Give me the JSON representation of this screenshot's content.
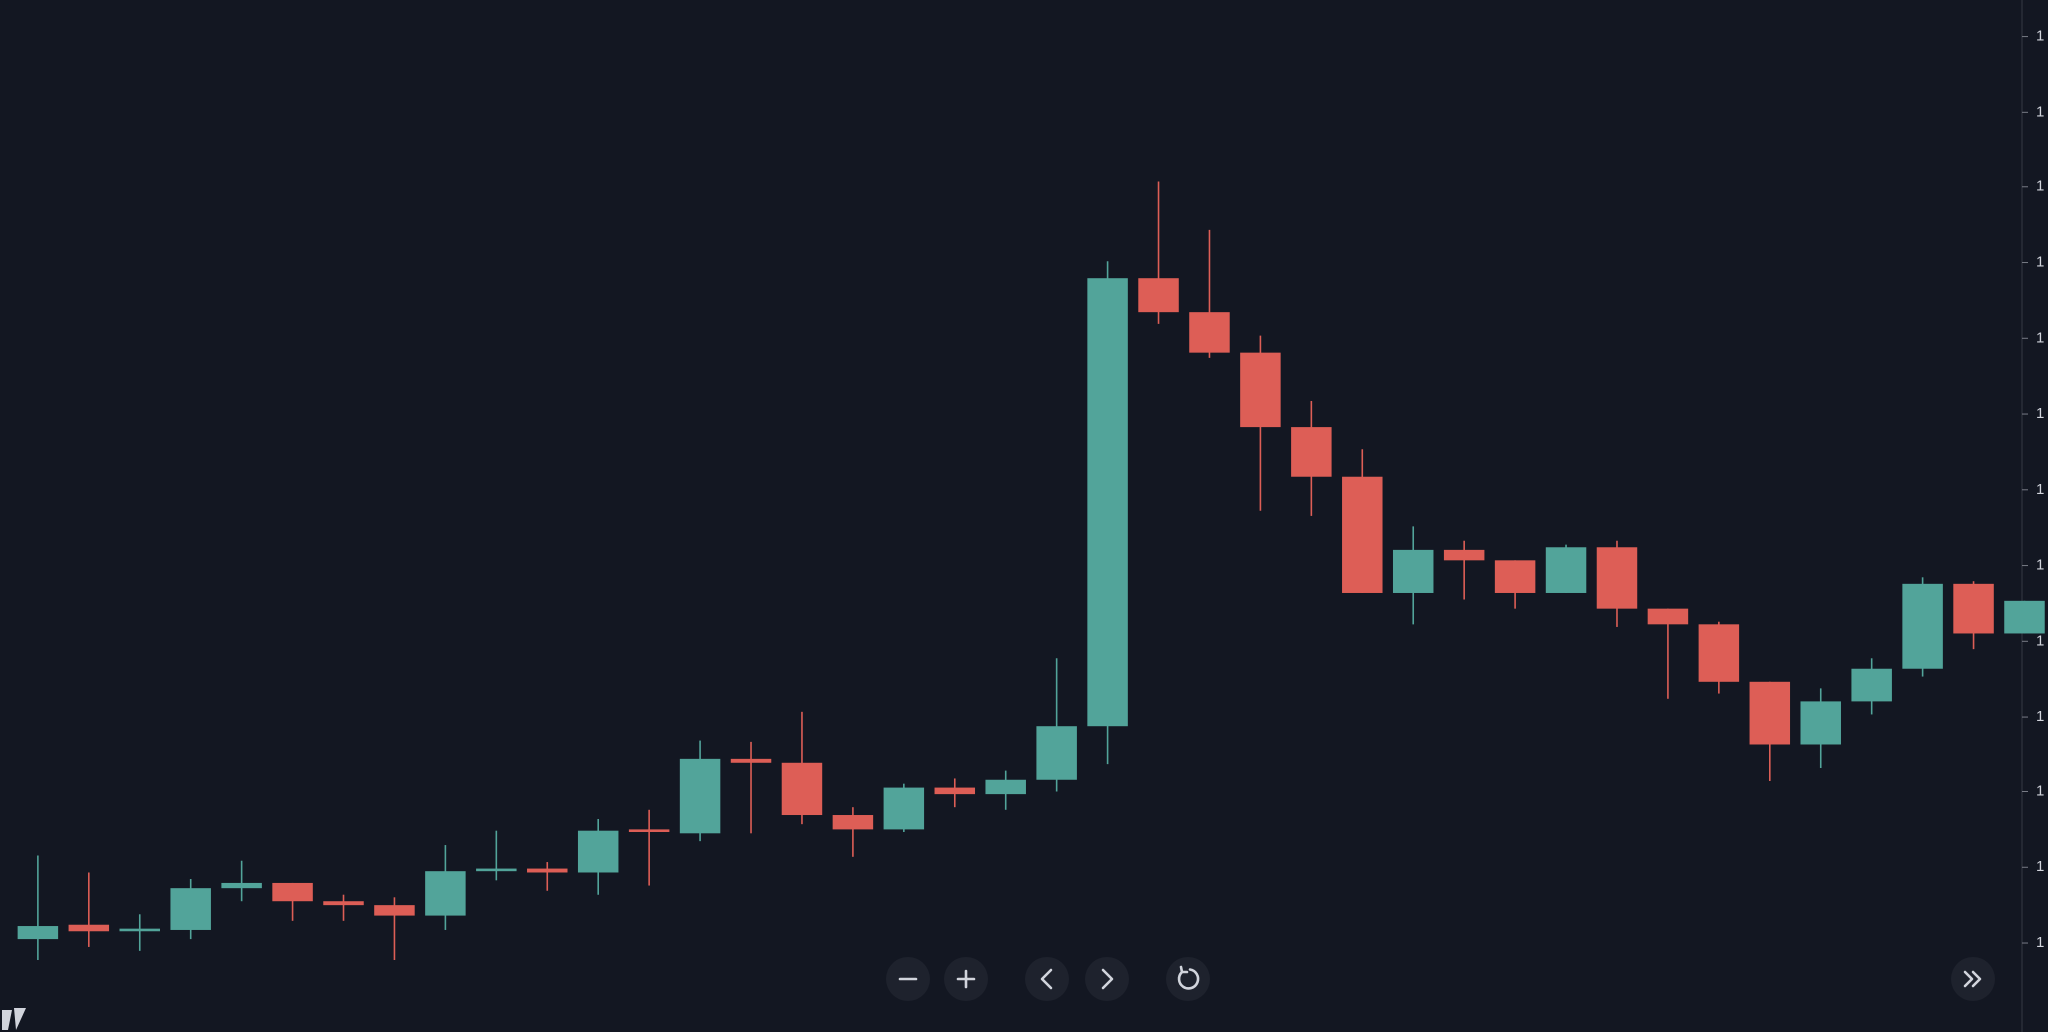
{
  "chart_data": {
    "type": "candlestick",
    "up_color": "#52a49a",
    "down_color": "#dd5e56",
    "open": [
      71,
      82,
      77,
      78,
      110,
      114,
      100,
      97,
      89,
      123,
      125,
      122,
      155,
      152,
      209,
      206,
      166,
      155,
      187,
      182,
      193,
      234,
      577,
      551,
      520,
      463,
      425,
      336,
      369,
      361,
      336,
      371,
      324,
      312,
      268,
      220,
      253,
      278,
      343,
      305
    ],
    "high": [
      135,
      122,
      90,
      117,
      131,
      114,
      105,
      103,
      143,
      154,
      130,
      163,
      170,
      223,
      222,
      245,
      172,
      190,
      194,
      200,
      286,
      590,
      651,
      614,
      533,
      483,
      446,
      387,
      376,
      361,
      373,
      376,
      324,
      314,
      268,
      263,
      286,
      348,
      345,
      330
    ],
    "low": [
      55,
      65,
      62,
      71,
      100,
      85,
      85,
      55,
      78,
      116,
      108,
      105,
      112,
      146,
      152,
      159,
      134,
      153,
      172,
      170,
      184,
      205,
      542,
      516,
      399,
      395,
      336,
      312,
      331,
      324,
      336,
      310,
      255,
      259,
      192,
      202,
      243,
      272,
      293,
      305
    ],
    "close": [
      81,
      77,
      79,
      110,
      114,
      100,
      97,
      89,
      123,
      125,
      122,
      154,
      153,
      209,
      206,
      166,
      155,
      187,
      182,
      193,
      234,
      577,
      551,
      520,
      463,
      425,
      336,
      369,
      361,
      336,
      371,
      324,
      312,
      268,
      220,
      253,
      278,
      343,
      305,
      330
    ],
    "ylim": [
      0,
      790
    ],
    "yticks": [
      {
        "value": 762,
        "label": "1"
      },
      {
        "value": 704,
        "label": "1"
      },
      {
        "value": 647,
        "label": "1"
      },
      {
        "value": 589,
        "label": "1"
      },
      {
        "value": 531,
        "label": "1"
      },
      {
        "value": 473,
        "label": "1"
      },
      {
        "value": 415,
        "label": "1"
      },
      {
        "value": 357,
        "label": "1"
      },
      {
        "value": 299,
        "label": "1"
      },
      {
        "value": 241,
        "label": "1"
      },
      {
        "value": 184,
        "label": "1"
      },
      {
        "value": 126,
        "label": "1"
      },
      {
        "value": 68,
        "label": "1"
      }
    ]
  }
}
